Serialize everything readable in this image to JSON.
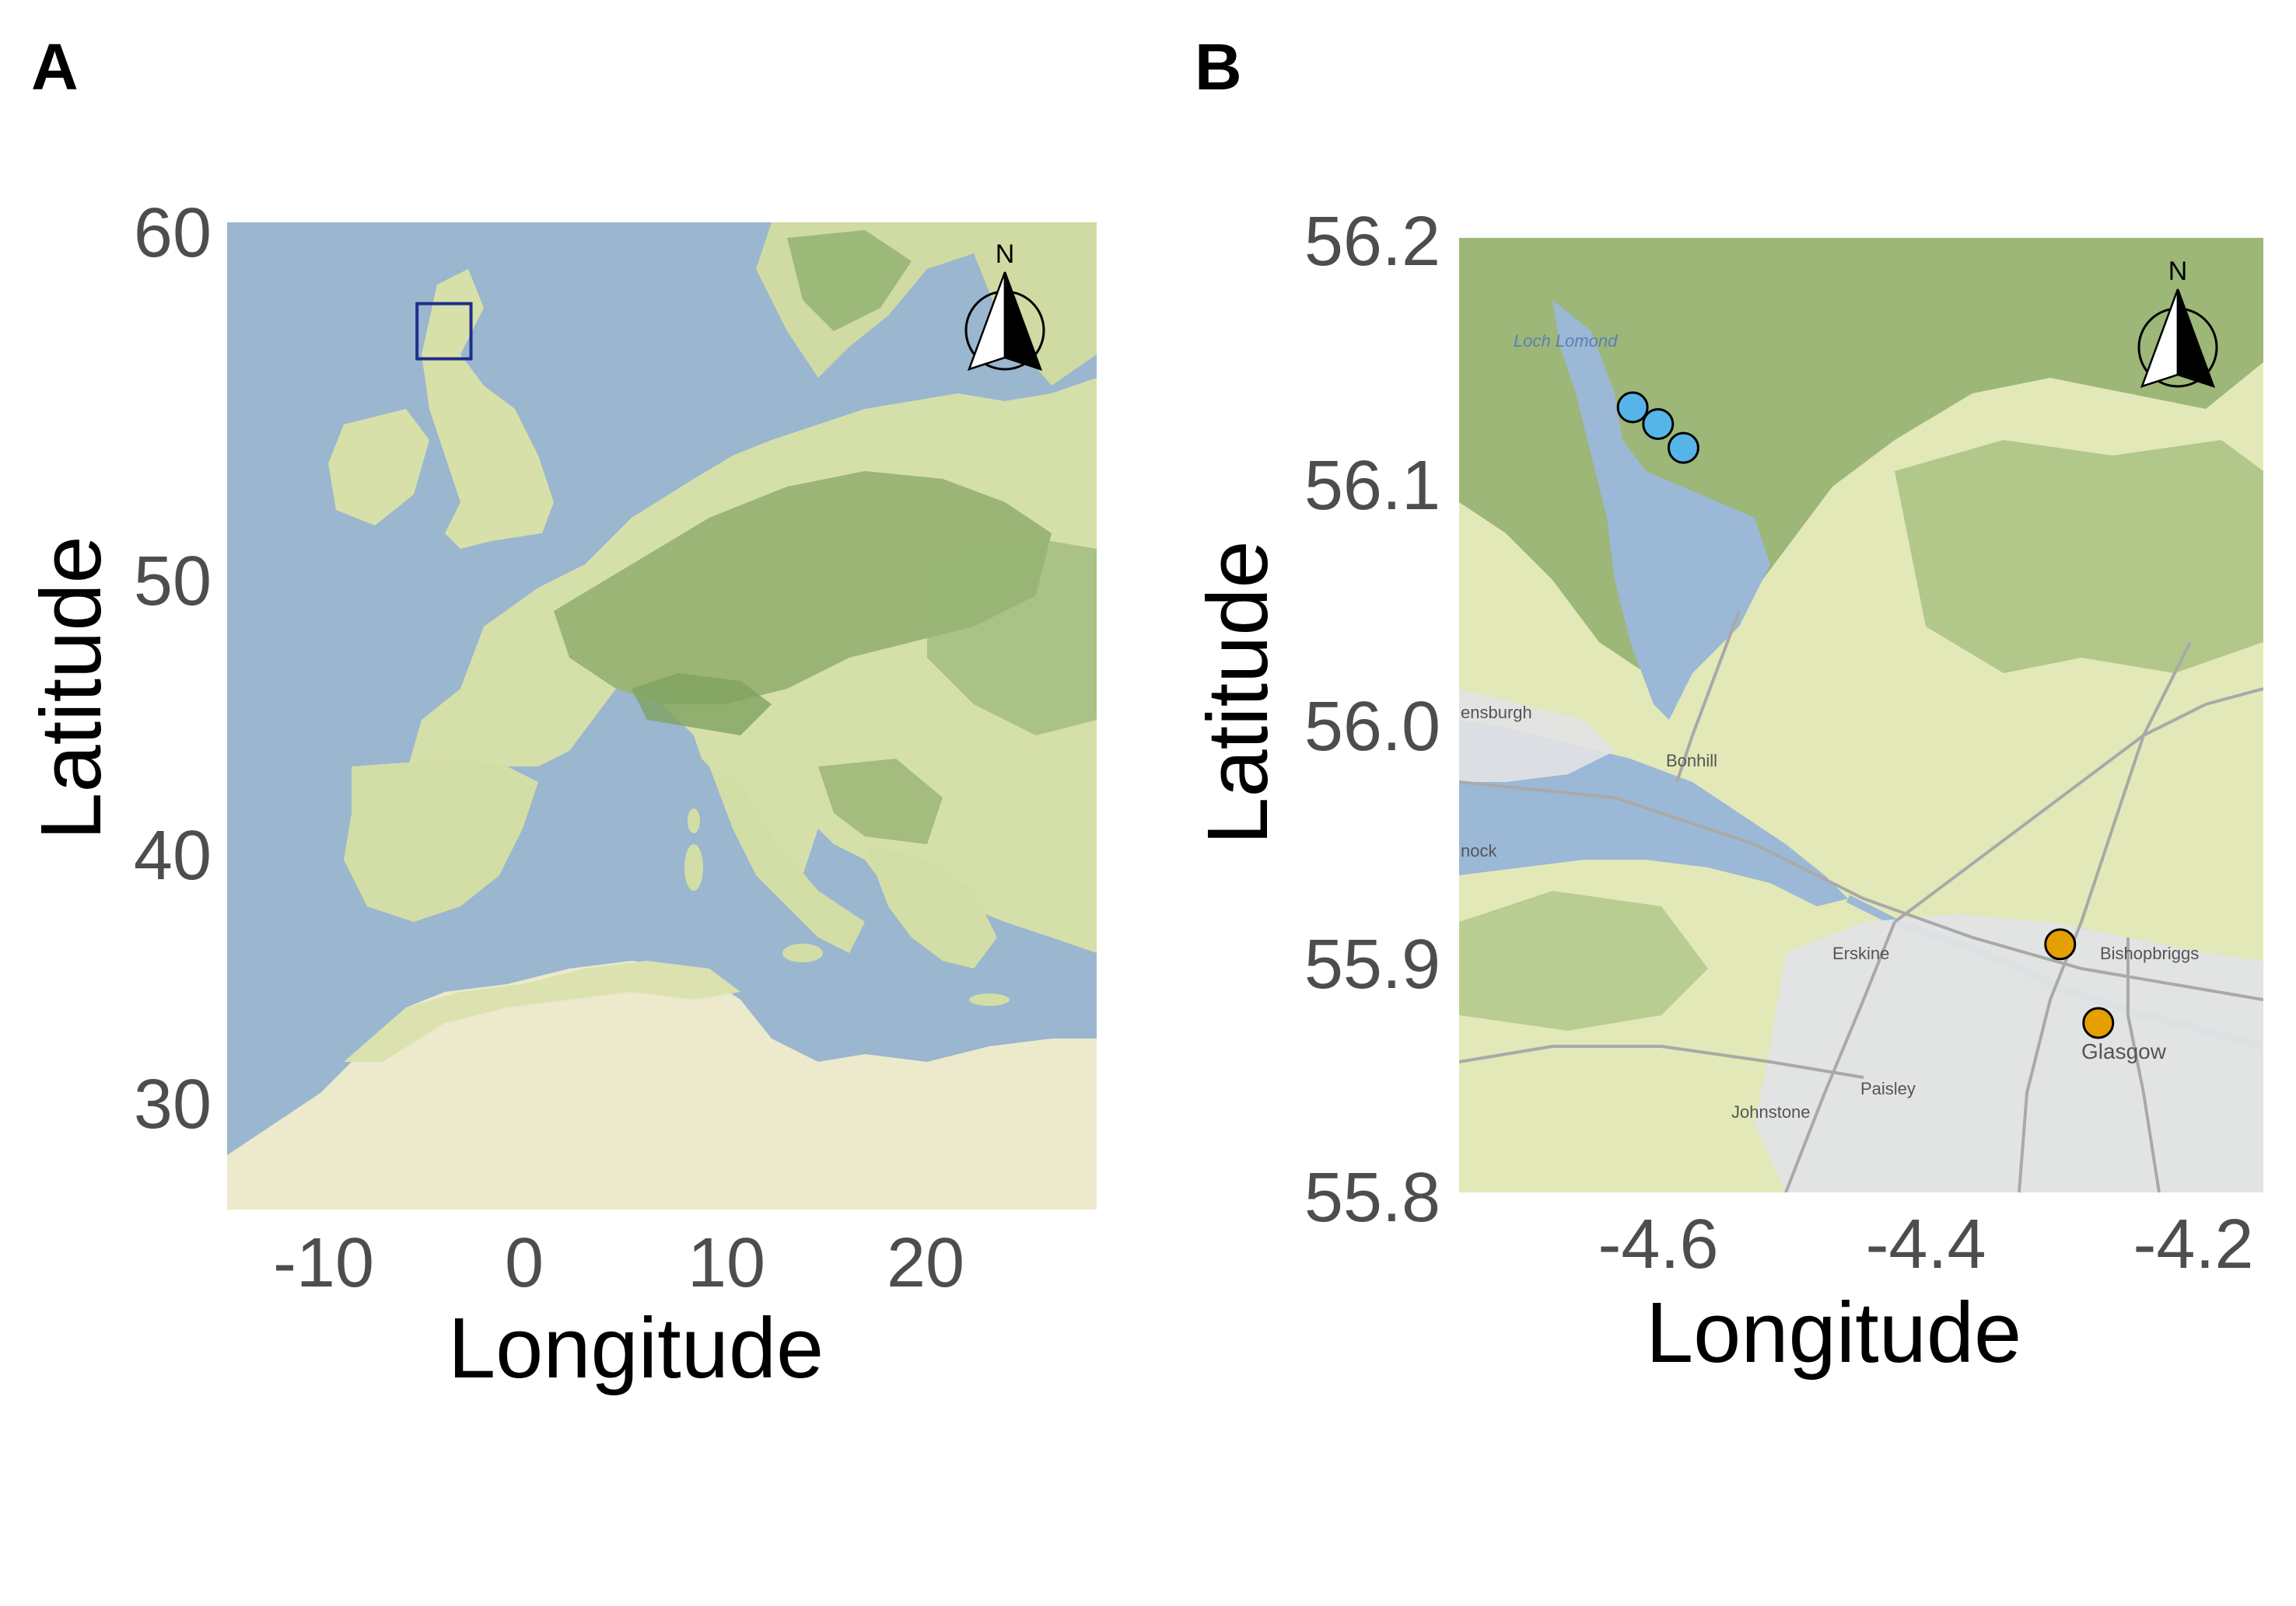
{
  "panels": {
    "a": {
      "letter": "A",
      "y_ticks": [
        "60",
        "50",
        "40",
        "30"
      ],
      "x_ticks": [
        "-10",
        "0",
        "10",
        "20"
      ],
      "xlabel": "Longitude",
      "ylabel": "Latitude",
      "north_label": "N",
      "extent": {
        "lon": [
          -15,
          28.5
        ],
        "lat": [
          26,
          60
        ]
      },
      "study_box": {
        "lon": [
          -5.5,
          -2.8
        ],
        "lat": [
          55.3,
          57.2
        ]
      },
      "colors": {
        "sea": "#9bb6cf",
        "land": "#d5dfa9",
        "forest": "#8fae6c",
        "desert": "#ece9cc",
        "box": "#1f2e8a"
      }
    },
    "b": {
      "letter": "B",
      "y_ticks": [
        "56.2",
        "56.1",
        "56.0",
        "55.9",
        "55.8"
      ],
      "x_ticks": [
        "-4.6",
        "-4.4",
        "-4.2"
      ],
      "xlabel": "Longitude",
      "ylabel": "Latitude",
      "north_label": "N",
      "extent": {
        "lon": [
          -4.75,
          -4.18
        ],
        "lat": [
          55.8,
          56.2
        ]
      },
      "place_labels": [
        "Loch Lomond",
        "ensburgh",
        "Bonhill",
        "nock",
        "Erskine",
        "Bishopbriggs",
        "Glasgow",
        "Paisley",
        "Johnstone"
      ],
      "points": [
        {
          "group": "loch",
          "lon": -4.627,
          "lat": 56.129,
          "color": "#56b4e9"
        },
        {
          "group": "loch",
          "lon": -4.609,
          "lat": 56.122,
          "color": "#56b4e9"
        },
        {
          "group": "loch",
          "lon": -4.591,
          "lat": 56.112,
          "color": "#56b4e9"
        },
        {
          "group": "city",
          "lon": -4.324,
          "lat": 55.904,
          "color": "#e69f00"
        },
        {
          "group": "city",
          "lon": -4.297,
          "lat": 55.871,
          "color": "#e69f00"
        }
      ],
      "colors": {
        "water": "#9bb8d6",
        "land": "#e3e8b8",
        "forest": "#8fae6c",
        "urban": "#e2e3e5",
        "road": "#a9a9a9"
      }
    }
  }
}
